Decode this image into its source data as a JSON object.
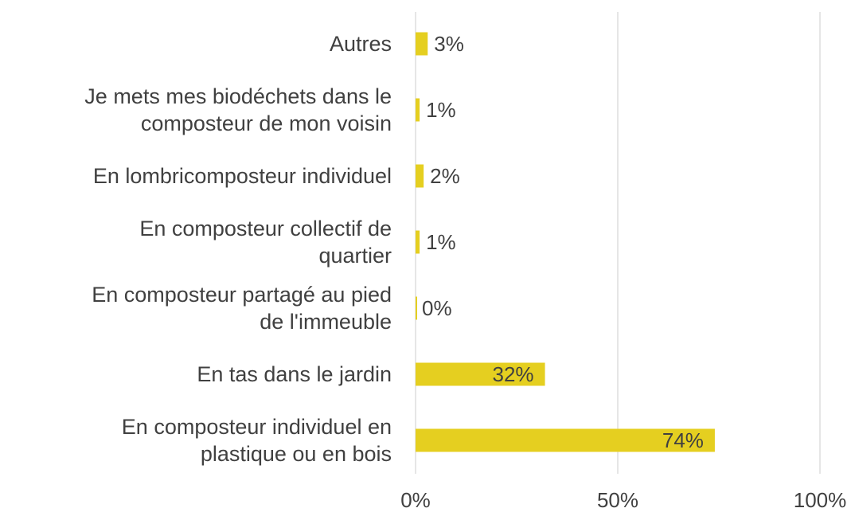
{
  "chart_data": {
    "type": "barh",
    "categories": [
      "Autres",
      "Je mets mes biodéchets dans le\ncomposteur de mon voisin",
      "En lombricomposteur individuel",
      "En composteur collectif de\nquartier",
      "En composteur partagé au pied\nde l'immeuble",
      "En tas dans le jardin",
      "En composteur individuel en\nplastique ou en bois"
    ],
    "values": [
      3,
      1,
      2,
      1,
      0,
      32,
      74
    ],
    "value_labels": [
      "3%",
      "1%",
      "2%",
      "1%",
      "0%",
      "32%",
      "74%"
    ],
    "color": "#e5cf20",
    "xlim": [
      0,
      100
    ],
    "xticks": [
      {
        "value": 0,
        "label": "0%"
      },
      {
        "value": 50,
        "label": "50%"
      },
      {
        "value": 100,
        "label": "100%"
      }
    ],
    "grid": true
  }
}
